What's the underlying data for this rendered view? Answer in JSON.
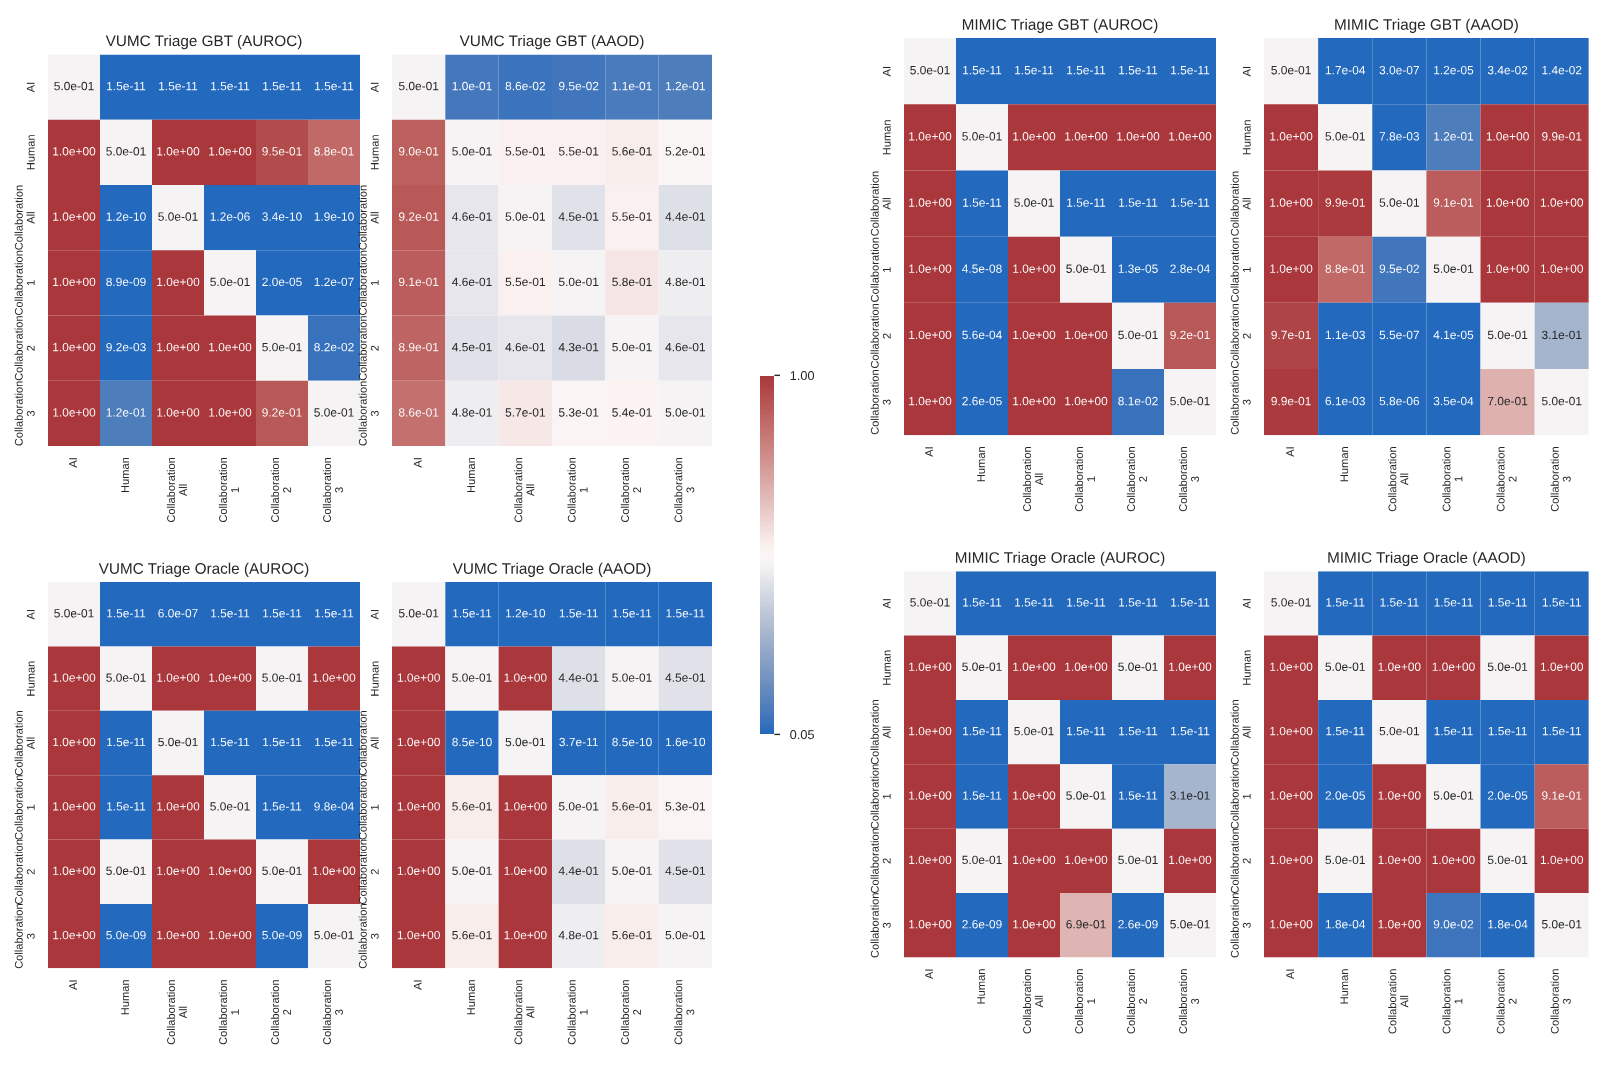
{
  "chart_data": [
    {
      "type": "heatmap",
      "title": "VUMC Triage GBT (AUROC)",
      "categories": [
        "AI",
        "Human",
        "Collaboration\nAll",
        "Collaboration\n1",
        "Collaboration\n2",
        "Collaboration\n3"
      ],
      "y_categories": [
        "AI",
        "Human",
        "Collaboration\nAll",
        "Collaboration\n1",
        "Collaboration\n2",
        "Collaboration\n3"
      ],
      "clim": [
        0.05,
        1.0
      ],
      "cticks": [
        {
          "value": 0.05,
          "label": "0.05"
        },
        {
          "value": 1.0,
          "label": "1.00"
        }
      ],
      "cells": [
        [
          0.5,
          1.5e-11,
          1.5e-11,
          1.5e-11,
          1.5e-11,
          1.5e-11
        ],
        [
          1.0,
          0.5,
          1.0,
          1.0,
          0.95,
          0.88
        ],
        [
          1.0,
          1.2e-10,
          0.5,
          1.2e-06,
          3.4e-10,
          1.9e-10
        ],
        [
          1.0,
          8.9e-09,
          1.0,
          0.5,
          2e-05,
          1.2e-07
        ],
        [
          1.0,
          0.0092,
          1.0,
          1.0,
          0.5,
          0.082
        ],
        [
          1.0,
          0.12,
          1.0,
          1.0,
          0.92,
          0.5
        ]
      ],
      "cell_labels": [
        [
          "5.0e-01",
          "1.5e-11",
          "1.5e-11",
          "1.5e-11",
          "1.5e-11",
          "1.5e-11"
        ],
        [
          "1.0e+00",
          "5.0e-01",
          "1.0e+00",
          "1.0e+00",
          "9.5e-01",
          "8.8e-01"
        ],
        [
          "1.0e+00",
          "1.2e-10",
          "5.0e-01",
          "1.2e-06",
          "3.4e-10",
          "1.9e-10"
        ],
        [
          "1.0e+00",
          "8.9e-09",
          "1.0e+00",
          "5.0e-01",
          "2.0e-05",
          "1.2e-07"
        ],
        [
          "1.0e+00",
          "9.2e-03",
          "1.0e+00",
          "1.0e+00",
          "5.0e-01",
          "8.2e-02"
        ],
        [
          "1.0e+00",
          "1.2e-01",
          "1.0e+00",
          "1.0e+00",
          "9.2e-01",
          "5.0e-01"
        ]
      ]
    },
    {
      "type": "heatmap",
      "title": "VUMC Triage GBT (AAOD)",
      "categories": [
        "AI",
        "Human",
        "Collaboration\nAll",
        "Collaboration\n1",
        "Collaboration\n2",
        "Collaboration\n3"
      ],
      "y_categories": [
        "AI",
        "Human",
        "Collaboration\nAll",
        "Collaboration\n1",
        "Collaboration\n2",
        "Collaboration\n3"
      ],
      "cells": [
        [
          0.5,
          0.1,
          0.086,
          0.095,
          0.11,
          0.12
        ],
        [
          0.9,
          0.5,
          0.55,
          0.55,
          0.56,
          0.52
        ],
        [
          0.92,
          0.46,
          0.5,
          0.45,
          0.55,
          0.44
        ],
        [
          0.91,
          0.46,
          0.55,
          0.5,
          0.58,
          0.48
        ],
        [
          0.89,
          0.45,
          0.46,
          0.43,
          0.5,
          0.46
        ],
        [
          0.86,
          0.48,
          0.57,
          0.53,
          0.54,
          0.5
        ]
      ],
      "cell_labels": [
        [
          "5.0e-01",
          "1.0e-01",
          "8.6e-02",
          "9.5e-02",
          "1.1e-01",
          "1.2e-01"
        ],
        [
          "9.0e-01",
          "5.0e-01",
          "5.5e-01",
          "5.5e-01",
          "5.6e-01",
          "5.2e-01"
        ],
        [
          "9.2e-01",
          "4.6e-01",
          "5.0e-01",
          "4.5e-01",
          "5.5e-01",
          "4.4e-01"
        ],
        [
          "9.1e-01",
          "4.6e-01",
          "5.5e-01",
          "5.0e-01",
          "5.8e-01",
          "4.8e-01"
        ],
        [
          "8.9e-01",
          "4.5e-01",
          "4.6e-01",
          "4.3e-01",
          "5.0e-01",
          "4.6e-01"
        ],
        [
          "8.6e-01",
          "4.8e-01",
          "5.7e-01",
          "5.3e-01",
          "5.4e-01",
          "5.0e-01"
        ]
      ]
    },
    {
      "type": "heatmap",
      "title": "MIMIC Triage GBT (AUROC)",
      "categories": [
        "AI",
        "Human",
        "Collaboration\nAll",
        "Collaboration\n1",
        "Collaboration\n2",
        "Collaboration\n3"
      ],
      "y_categories": [
        "AI",
        "Human",
        "Collaboration\nAll",
        "Collaboration\n1",
        "Collaboration\n2",
        "Collaboration\n3"
      ],
      "cells": [
        [
          0.5,
          1.5e-11,
          1.5e-11,
          1.5e-11,
          1.5e-11,
          1.5e-11
        ],
        [
          1.0,
          0.5,
          1.0,
          1.0,
          1.0,
          1.0
        ],
        [
          1.0,
          1.5e-11,
          0.5,
          1.5e-11,
          1.5e-11,
          1.5e-11
        ],
        [
          1.0,
          4.5e-08,
          1.0,
          0.5,
          1.3e-05,
          0.00028
        ],
        [
          1.0,
          0.00056,
          1.0,
          1.0,
          0.5,
          0.92
        ],
        [
          1.0,
          2.6e-05,
          1.0,
          1.0,
          0.081,
          0.5
        ]
      ],
      "cell_labels": [
        [
          "5.0e-01",
          "1.5e-11",
          "1.5e-11",
          "1.5e-11",
          "1.5e-11",
          "1.5e-11"
        ],
        [
          "1.0e+00",
          "5.0e-01",
          "1.0e+00",
          "1.0e+00",
          "1.0e+00",
          "1.0e+00"
        ],
        [
          "1.0e+00",
          "1.5e-11",
          "5.0e-01",
          "1.5e-11",
          "1.5e-11",
          "1.5e-11"
        ],
        [
          "1.0e+00",
          "4.5e-08",
          "1.0e+00",
          "5.0e-01",
          "1.3e-05",
          "2.8e-04"
        ],
        [
          "1.0e+00",
          "5.6e-04",
          "1.0e+00",
          "1.0e+00",
          "5.0e-01",
          "9.2e-01"
        ],
        [
          "1.0e+00",
          "2.6e-05",
          "1.0e+00",
          "1.0e+00",
          "8.1e-02",
          "5.0e-01"
        ]
      ]
    },
    {
      "type": "heatmap",
      "title": "MIMIC Triage GBT (AAOD)",
      "categories": [
        "AI",
        "Human",
        "Collaboration\nAll",
        "Collaboration\n1",
        "Collaboration\n2",
        "Collaboration\n3"
      ],
      "y_categories": [
        "AI",
        "Human",
        "Collaboration\nAll",
        "Collaboration\n1",
        "Collaboration\n2",
        "Collaboration\n3"
      ],
      "cells": [
        [
          0.5,
          0.00017,
          3e-07,
          1.2e-05,
          0.034,
          0.014
        ],
        [
          1.0,
          0.5,
          0.0078,
          0.12,
          1.0,
          0.99
        ],
        [
          1.0,
          0.99,
          0.5,
          0.91,
          1.0,
          1.0
        ],
        [
          1.0,
          0.88,
          0.095,
          0.5,
          1.0,
          1.0
        ],
        [
          0.97,
          0.0011,
          5.5e-07,
          4.1e-05,
          0.5,
          0.31
        ],
        [
          0.99,
          0.0061,
          5.8e-06,
          0.00035,
          0.7,
          0.5
        ]
      ],
      "cell_labels": [
        [
          "5.0e-01",
          "1.7e-04",
          "3.0e-07",
          "1.2e-05",
          "3.4e-02",
          "1.4e-02"
        ],
        [
          "1.0e+00",
          "5.0e-01",
          "7.8e-03",
          "1.2e-01",
          "1.0e+00",
          "9.9e-01"
        ],
        [
          "1.0e+00",
          "9.9e-01",
          "5.0e-01",
          "9.1e-01",
          "1.0e+00",
          "1.0e+00"
        ],
        [
          "1.0e+00",
          "8.8e-01",
          "9.5e-02",
          "5.0e-01",
          "1.0e+00",
          "1.0e+00"
        ],
        [
          "9.7e-01",
          "1.1e-03",
          "5.5e-07",
          "4.1e-05",
          "5.0e-01",
          "3.1e-01"
        ],
        [
          "9.9e-01",
          "6.1e-03",
          "5.8e-06",
          "3.5e-04",
          "7.0e-01",
          "5.0e-01"
        ]
      ]
    },
    {
      "type": "heatmap",
      "title": "VUMC Triage Oracle (AUROC)",
      "categories": [
        "AI",
        "Human",
        "Collaboration\nAll",
        "Collaboration\n1",
        "Collaboration\n2",
        "Collaboration\n3"
      ],
      "y_categories": [
        "AI",
        "Human",
        "Collaboration\nAll",
        "Collaboration\n1",
        "Collaboration\n2",
        "Collaboration\n3"
      ],
      "cells": [
        [
          0.5,
          1.5e-11,
          6e-07,
          1.5e-11,
          1.5e-11,
          1.5e-11
        ],
        [
          1.0,
          0.5,
          1.0,
          1.0,
          0.5,
          1.0
        ],
        [
          1.0,
          1.5e-11,
          0.5,
          1.5e-11,
          1.5e-11,
          1.5e-11
        ],
        [
          1.0,
          1.5e-11,
          1.0,
          0.5,
          1.5e-11,
          0.00098
        ],
        [
          1.0,
          0.5,
          1.0,
          1.0,
          0.5,
          1.0
        ],
        [
          1.0,
          5e-09,
          1.0,
          1.0,
          5e-09,
          0.5
        ]
      ],
      "cell_labels": [
        [
          "5.0e-01",
          "1.5e-11",
          "6.0e-07",
          "1.5e-11",
          "1.5e-11",
          "1.5e-11"
        ],
        [
          "1.0e+00",
          "5.0e-01",
          "1.0e+00",
          "1.0e+00",
          "5.0e-01",
          "1.0e+00"
        ],
        [
          "1.0e+00",
          "1.5e-11",
          "5.0e-01",
          "1.5e-11",
          "1.5e-11",
          "1.5e-11"
        ],
        [
          "1.0e+00",
          "1.5e-11",
          "1.0e+00",
          "5.0e-01",
          "1.5e-11",
          "9.8e-04"
        ],
        [
          "1.0e+00",
          "5.0e-01",
          "1.0e+00",
          "1.0e+00",
          "5.0e-01",
          "1.0e+00"
        ],
        [
          "1.0e+00",
          "5.0e-09",
          "1.0e+00",
          "1.0e+00",
          "5.0e-09",
          "5.0e-01"
        ]
      ]
    },
    {
      "type": "heatmap",
      "title": "VUMC Triage Oracle (AAOD)",
      "categories": [
        "AI",
        "Human",
        "Collaboration\nAll",
        "Collaboration\n1",
        "Collaboration\n2",
        "Collaboration\n3"
      ],
      "y_categories": [
        "AI",
        "Human",
        "Collaboration\nAll",
        "Collaboration\n1",
        "Collaboration\n2",
        "Collaboration\n3"
      ],
      "cells": [
        [
          0.5,
          1.5e-11,
          1.2e-10,
          1.5e-11,
          1.5e-11,
          1.5e-11
        ],
        [
          1.0,
          0.5,
          1.0,
          0.44,
          0.5,
          0.45
        ],
        [
          1.0,
          8.5e-10,
          0.5,
          3.7e-11,
          8.5e-10,
          1.6e-10
        ],
        [
          1.0,
          0.56,
          1.0,
          0.5,
          0.56,
          0.53
        ],
        [
          1.0,
          0.5,
          1.0,
          0.44,
          0.5,
          0.45
        ],
        [
          1.0,
          0.56,
          1.0,
          0.48,
          0.56,
          0.5
        ]
      ],
      "cell_labels": [
        [
          "5.0e-01",
          "1.5e-11",
          "1.2e-10",
          "1.5e-11",
          "1.5e-11",
          "1.5e-11"
        ],
        [
          "1.0e+00",
          "5.0e-01",
          "1.0e+00",
          "4.4e-01",
          "5.0e-01",
          "4.5e-01"
        ],
        [
          "1.0e+00",
          "8.5e-10",
          "5.0e-01",
          "3.7e-11",
          "8.5e-10",
          "1.6e-10"
        ],
        [
          "1.0e+00",
          "5.6e-01",
          "1.0e+00",
          "5.0e-01",
          "5.6e-01",
          "5.3e-01"
        ],
        [
          "1.0e+00",
          "5.0e-01",
          "1.0e+00",
          "4.4e-01",
          "5.0e-01",
          "4.5e-01"
        ],
        [
          "1.0e+00",
          "5.6e-01",
          "1.0e+00",
          "4.8e-01",
          "5.6e-01",
          "5.0e-01"
        ]
      ]
    },
    {
      "type": "heatmap",
      "title": "MIMIC Triage Oracle (AUROC)",
      "categories": [
        "AI",
        "Human",
        "Collaboration\nAll",
        "Collaboration\n1",
        "Collaboration\n2",
        "Collaboration\n3"
      ],
      "y_categories": [
        "AI",
        "Human",
        "Collaboration\nAll",
        "Collaboration\n1",
        "Collaboration\n2",
        "Collaboration\n3"
      ],
      "cells": [
        [
          0.5,
          1.5e-11,
          1.5e-11,
          1.5e-11,
          1.5e-11,
          1.5e-11
        ],
        [
          1.0,
          0.5,
          1.0,
          1.0,
          0.5,
          1.0
        ],
        [
          1.0,
          1.5e-11,
          0.5,
          1.5e-11,
          1.5e-11,
          1.5e-11
        ],
        [
          1.0,
          1.5e-11,
          1.0,
          0.5,
          1.5e-11,
          0.31
        ],
        [
          1.0,
          0.5,
          1.0,
          1.0,
          0.5,
          1.0
        ],
        [
          1.0,
          2.6e-09,
          1.0,
          0.69,
          2.6e-09,
          0.5
        ]
      ],
      "cell_labels": [
        [
          "5.0e-01",
          "1.5e-11",
          "1.5e-11",
          "1.5e-11",
          "1.5e-11",
          "1.5e-11"
        ],
        [
          "1.0e+00",
          "5.0e-01",
          "1.0e+00",
          "1.0e+00",
          "5.0e-01",
          "1.0e+00"
        ],
        [
          "1.0e+00",
          "1.5e-11",
          "5.0e-01",
          "1.5e-11",
          "1.5e-11",
          "1.5e-11"
        ],
        [
          "1.0e+00",
          "1.5e-11",
          "1.0e+00",
          "5.0e-01",
          "1.5e-11",
          "3.1e-01"
        ],
        [
          "1.0e+00",
          "5.0e-01",
          "1.0e+00",
          "1.0e+00",
          "5.0e-01",
          "1.0e+00"
        ],
        [
          "1.0e+00",
          "2.6e-09",
          "1.0e+00",
          "6.9e-01",
          "2.6e-09",
          "5.0e-01"
        ]
      ]
    },
    {
      "type": "heatmap",
      "title": "MIMIC Triage Oracle (AAOD)",
      "categories": [
        "AI",
        "Human",
        "Collaboration\nAll",
        "Collaboration\n1",
        "Collaboration\n2",
        "Collaboration\n3"
      ],
      "y_categories": [
        "AI",
        "Human",
        "Collaboration\nAll",
        "Collaboration\n1",
        "Collaboration\n2",
        "Collaboration\n3"
      ],
      "cells": [
        [
          0.5,
          1.5e-11,
          1.5e-11,
          1.5e-11,
          1.5e-11,
          1.5e-11
        ],
        [
          1.0,
          0.5,
          1.0,
          1.0,
          0.5,
          1.0
        ],
        [
          1.0,
          1.5e-11,
          0.5,
          1.5e-11,
          1.5e-11,
          1.5e-11
        ],
        [
          1.0,
          2e-05,
          1.0,
          0.5,
          2e-05,
          0.91
        ],
        [
          1.0,
          0.5,
          1.0,
          1.0,
          0.5,
          1.0
        ],
        [
          1.0,
          0.00018,
          1.0,
          0.09,
          0.00018,
          0.5
        ]
      ],
      "cell_labels": [
        [
          "5.0e-01",
          "1.5e-11",
          "1.5e-11",
          "1.5e-11",
          "1.5e-11",
          "1.5e-11"
        ],
        [
          "1.0e+00",
          "5.0e-01",
          "1.0e+00",
          "1.0e+00",
          "5.0e-01",
          "1.0e+00"
        ],
        [
          "1.0e+00",
          "1.5e-11",
          "5.0e-01",
          "1.5e-11",
          "1.5e-11",
          "1.5e-11"
        ],
        [
          "1.0e+00",
          "2.0e-05",
          "1.0e+00",
          "5.0e-01",
          "2.0e-05",
          "9.1e-01"
        ],
        [
          "1.0e+00",
          "5.0e-01",
          "1.0e+00",
          "1.0e+00",
          "5.0e-01",
          "1.0e+00"
        ],
        [
          "1.0e+00",
          "1.8e-04",
          "1.0e+00",
          "9.0e-02",
          "1.8e-04",
          "5.0e-01"
        ]
      ]
    }
  ]
}
